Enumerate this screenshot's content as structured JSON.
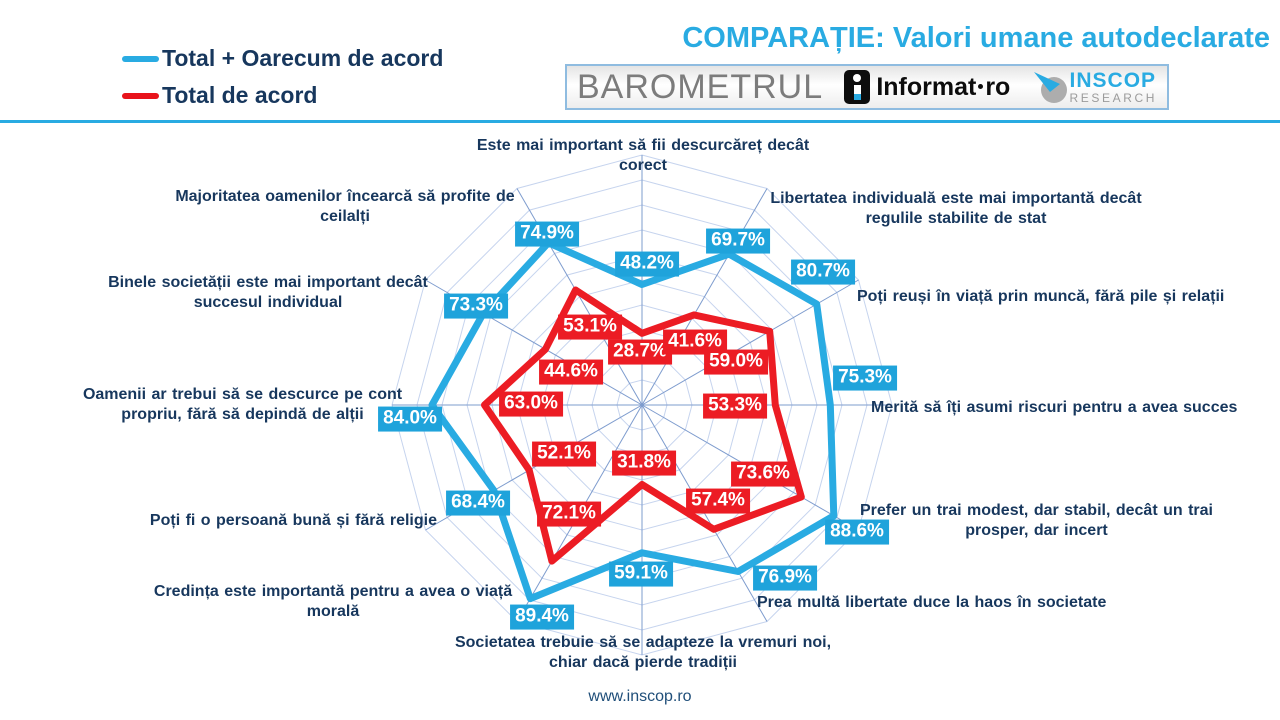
{
  "header": {
    "title": "COMPARAȚIE: Valori umane autodeclarate",
    "legend": [
      {
        "label": "Total + Oarecum de acord",
        "color": "#29ABE2"
      },
      {
        "label": "Total de acord",
        "color": "#E8131B"
      }
    ],
    "brand": {
      "barometrul": "BAROMETRUL",
      "informat_name": "Informat",
      "informat_tld": "ro",
      "inscop_name": "INSCOP",
      "inscop_sub": "RESEARCH"
    }
  },
  "chart_data": {
    "type": "radar",
    "axes_count": 12,
    "scale": {
      "min": 0,
      "max": 100,
      "ring_step_pct": 10,
      "grid": true
    },
    "value_label_format": "percent_one_decimal",
    "categories": [
      "Este mai important să fii descurcăreț decât corect",
      "Libertatea individuală este mai importantă decât regulile stabilite de stat",
      "Poți reuși în viață prin muncă, fără pile și relații",
      "Merită să îți asumi riscuri pentru a avea succes",
      "Prefer un trai modest, dar stabil, decât un trai prosper, dar incert",
      "Prea multă libertate duce la haos în societate",
      "Societatea trebuie să se adapteze la vremuri noi, chiar dacă pierde tradiții",
      "Credința este importantă pentru a avea o viață morală",
      "Poți fi o persoană bună și fără religie",
      "Oamenii ar trebui să se descurce pe cont propriu, fără să depindă de alții",
      "Binele societății este mai important decât succesul individual",
      "Majoritatea oamenilor încearcă să profite de ceilalți"
    ],
    "series": [
      {
        "name": "Total + Oarecum de acord",
        "color": "#29ABE2",
        "label_bg": "#1FA3DB",
        "values": [
          48.2,
          69.7,
          80.7,
          75.3,
          88.6,
          76.9,
          59.1,
          89.4,
          68.4,
          84.0,
          73.3,
          74.9
        ]
      },
      {
        "name": "Total de acord",
        "color": "#EC1C24",
        "label_bg": "#EC1C24",
        "values": [
          28.7,
          41.6,
          59.0,
          53.3,
          73.6,
          57.4,
          31.8,
          72.1,
          52.1,
          63.0,
          44.6,
          53.1
        ]
      }
    ],
    "grid_colors": {
      "ring": "#C6D4EE",
      "spoke": "#7E9CCE"
    }
  },
  "footer": {
    "url": "www.inscop.ro"
  }
}
